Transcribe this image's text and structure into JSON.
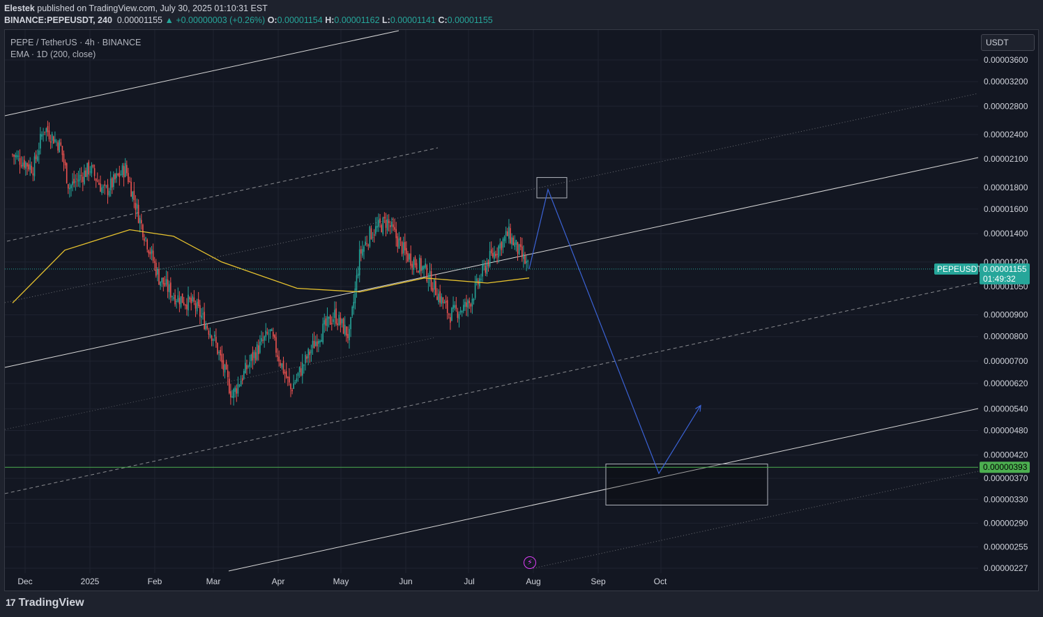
{
  "header": {
    "author": "Elestek",
    "published": "published on TradingView.com, July 30, 2025 01:10:31 EST",
    "symbol": "BINANCE:PEPEUSDT, 240",
    "last": "0.00001155",
    "change_arrow": "▲",
    "change": "+0.00000003 (+0.26%)",
    "o_label": "O:",
    "o": "0.00001154",
    "h_label": "H:",
    "h": "0.00001162",
    "l_label": "L:",
    "l": "0.00001141",
    "c_label": "C:",
    "c": "0.00001155"
  },
  "legend": {
    "title": "PEPE / TetherUS · 4h · BINANCE",
    "indicator": "EMA · 1D (200, close)"
  },
  "currency": "USDT",
  "footer": {
    "brand": "TradingView",
    "logo_icon": "tradingview-logo-icon"
  },
  "colors": {
    "background": "#131722",
    "up": "#26a69a",
    "down": "#ef5350",
    "ema": "#e8c32e",
    "projection": "#3b63d6",
    "support": "#4caf50",
    "channel": "#d9d9d9"
  },
  "chart_data": {
    "type": "candlestick",
    "scale": "logarithmic",
    "title": "PEPE / TetherUS · 4h · BINANCE",
    "x_ticks": [
      "Dec",
      "2025",
      "Feb",
      "Mar",
      "Apr",
      "May",
      "Jun",
      "Jul",
      "Aug",
      "Sep",
      "Oct"
    ],
    "y_ticks": [
      "0.00003600",
      "0.00003200",
      "0.00002800",
      "0.00002400",
      "0.00002100",
      "0.00001800",
      "0.00001600",
      "0.00001400",
      "0.00001200",
      "0.00001050",
      "0.00000900",
      "0.00000800",
      "0.00000700",
      "0.00000620",
      "0.00000540",
      "0.00000480",
      "0.00000420",
      "0.00000370",
      "0.00000330",
      "0.00000290",
      "0.00000255",
      "0.00000227"
    ],
    "y_tick_values": [
      3.6e-05,
      3.2e-05,
      2.8e-05,
      2.4e-05,
      2.1e-05,
      1.8e-05,
      1.6e-05,
      1.4e-05,
      1.2e-05,
      1.05e-05,
      9e-06,
      8e-06,
      7e-06,
      6.2e-06,
      5.4e-06,
      4.8e-06,
      4.2e-06,
      3.7e-06,
      3.3e-06,
      2.9e-06,
      2.55e-06,
      2.27e-06
    ],
    "close_path": [
      {
        "date": "2024-11-25",
        "price": 2.15e-05
      },
      {
        "date": "2024-12-05",
        "price": 2e-05
      },
      {
        "date": "2024-12-10",
        "price": 2.5e-05
      },
      {
        "date": "2024-12-18",
        "price": 2.25e-05
      },
      {
        "date": "2024-12-22",
        "price": 1.8e-05
      },
      {
        "date": "2025-01-01",
        "price": 2e-05
      },
      {
        "date": "2025-01-08",
        "price": 1.75e-05
      },
      {
        "date": "2025-01-18",
        "price": 2e-05
      },
      {
        "date": "2025-01-25",
        "price": 1.5e-05
      },
      {
        "date": "2025-02-03",
        "price": 1.1e-05
      },
      {
        "date": "2025-02-10",
        "price": 1e-05
      },
      {
        "date": "2025-02-20",
        "price": 9.5e-06
      },
      {
        "date": "2025-03-01",
        "price": 8e-06
      },
      {
        "date": "2025-03-10",
        "price": 5.8e-06
      },
      {
        "date": "2025-03-20",
        "price": 7.2e-06
      },
      {
        "date": "2025-03-28",
        "price": 8.2e-06
      },
      {
        "date": "2025-04-07",
        "price": 6e-06
      },
      {
        "date": "2025-04-20",
        "price": 8e-06
      },
      {
        "date": "2025-04-28",
        "price": 9e-06
      },
      {
        "date": "2025-05-05",
        "price": 8e-06
      },
      {
        "date": "2025-05-10",
        "price": 1.25e-05
      },
      {
        "date": "2025-05-15",
        "price": 1.4e-05
      },
      {
        "date": "2025-05-23",
        "price": 1.5e-05
      },
      {
        "date": "2025-06-01",
        "price": 1.25e-05
      },
      {
        "date": "2025-06-10",
        "price": 1.15e-05
      },
      {
        "date": "2025-06-22",
        "price": 9e-06
      },
      {
        "date": "2025-07-01",
        "price": 9.5e-06
      },
      {
        "date": "2025-07-10",
        "price": 1.2e-05
      },
      {
        "date": "2025-07-20",
        "price": 1.4e-05
      },
      {
        "date": "2025-07-30",
        "price": 1.155e-05
      }
    ],
    "ema": {
      "name": "EMA · 1D (200, close)",
      "points": [
        {
          "date": "2024-11-25",
          "price": 9.6e-06
        },
        {
          "date": "2024-12-20",
          "price": 1.28e-05
        },
        {
          "date": "2025-01-20",
          "price": 1.43e-05
        },
        {
          "date": "2025-02-10",
          "price": 1.38e-05
        },
        {
          "date": "2025-03-05",
          "price": 1.2e-05
        },
        {
          "date": "2025-04-10",
          "price": 1.04e-05
        },
        {
          "date": "2025-05-10",
          "price": 1.02e-05
        },
        {
          "date": "2025-06-10",
          "price": 1.1e-05
        },
        {
          "date": "2025-07-10",
          "price": 1.07e-05
        },
        {
          "date": "2025-07-30",
          "price": 1.1e-05
        }
      ]
    },
    "projection": [
      {
        "date": "2025-07-30",
        "price": 1.155e-05
      },
      {
        "date": "2025-08-08",
        "price": 1.78e-05
      },
      {
        "date": "2025-09-30",
        "price": 3.8e-06
      },
      {
        "date": "2025-10-20",
        "price": 5.5e-06
      }
    ],
    "current_price": {
      "symbol": "PEPEUSDT",
      "price": "0.00001155",
      "countdown": "01:49:32"
    },
    "support_level": {
      "price": "0.00000393"
    },
    "target_zone": {
      "from": "0.00000320",
      "to": "0.00000400"
    },
    "resistance_zone": {
      "from": "0.00001700",
      "to": "0.00001900"
    }
  }
}
